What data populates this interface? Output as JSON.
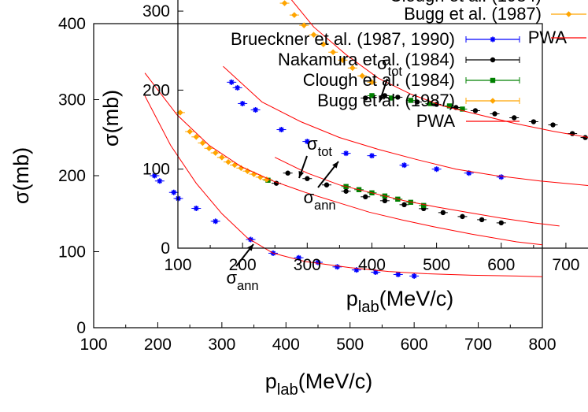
{
  "chart_data": [
    {
      "type": "scatter",
      "panel": "main",
      "xlabel": "p_lab(MeV/c)",
      "ylabel": "σ(mb)",
      "xlim": [
        100,
        800
      ],
      "ylim": [
        0,
        400
      ],
      "xticks": [
        "100",
        "200",
        "300",
        "400",
        "500",
        "600",
        "700",
        "800"
      ],
      "yticks": [
        "0",
        "100",
        "200",
        "300",
        "400"
      ],
      "legend_position": "top-right",
      "series": [
        {
          "name": "Brueckner et al. (1987, 1990)",
          "color": "#0000ff",
          "marker": "star",
          "points": [
            [
              195,
              200
            ],
            [
              203,
              193
            ],
            [
              225,
              178
            ],
            [
              232,
              170
            ],
            [
              260,
              157
            ],
            [
              290,
              140
            ],
            [
              345,
              116
            ],
            [
              380,
              98
            ],
            [
              420,
              92
            ],
            [
              450,
              86
            ],
            [
              480,
              80
            ],
            [
              510,
              76
            ],
            [
              540,
              73
            ],
            [
              575,
              70
            ],
            [
              600,
              68
            ]
          ]
        },
        {
          "name": "Nakamura et al. (1984)",
          "color": "#000000",
          "marker": "circle",
          "points": [
            [
              385,
              190
            ]
          ]
        },
        {
          "name": "Clough et al. (1984)",
          "color": "#008000",
          "marker": "square",
          "points": [
            [
              372,
              194
            ]
          ]
        },
        {
          "name": "Bugg et al. (1987)",
          "color": "#ffa500",
          "marker": "diamond",
          "points": [
            [
              235,
              283
            ],
            [
              250,
              258
            ],
            [
              260,
              251
            ],
            [
              270,
              243
            ],
            [
              280,
              236
            ],
            [
              290,
              230
            ],
            [
              300,
              224
            ],
            [
              310,
              218
            ],
            [
              320,
              214
            ],
            [
              330,
              210
            ],
            [
              340,
              206
            ],
            [
              350,
              202
            ],
            [
              360,
              198
            ],
            [
              370,
              195
            ]
          ]
        },
        {
          "name": "PWA",
          "color": "#ff0000",
          "marker": "line",
          "curves": [
            [
              [
                180,
                335
              ],
              [
                230,
                280
              ],
              [
                280,
                240
              ],
              [
                330,
                212
              ],
              [
                380,
                193
              ],
              [
                430,
                178
              ],
              [
                480,
                165
              ],
              [
                530,
                152
              ],
              [
                580,
                142
              ],
              [
                630,
                133
              ],
              [
                690,
                123
              ],
              [
                760,
                113
              ],
              [
                800,
                109
              ]
            ],
            [
              [
                180,
                305
              ],
              [
                220,
                240
              ],
              [
                260,
                190
              ],
              [
                300,
                150
              ],
              [
                340,
                118
              ],
              [
                380,
                98
              ],
              [
                430,
                87
              ],
              [
                500,
                79
              ],
              [
                560,
                74
              ],
              [
                620,
                71
              ],
              [
                690,
                69
              ],
              [
                760,
                68
              ],
              [
                800,
                67
              ]
            ]
          ]
        }
      ],
      "annotations": [
        "σ_ann"
      ]
    },
    {
      "type": "scatter",
      "panel": "inset",
      "xlabel": "p_lab(MeV/c)",
      "ylabel": "σ(mb)",
      "xlim": [
        100,
        750
      ],
      "ylim": [
        0,
        330
      ],
      "xticks": [
        "100",
        "200",
        "300",
        "400",
        "500",
        "600",
        "700"
      ],
      "yticks": [
        "0",
        "100",
        "200",
        "300"
      ],
      "series": [
        {
          "name": "Brueckner et al. (1987, 1990)",
          "color": "#0000ff",
          "marker": "star",
          "points": [
            [
              183,
              210
            ],
            [
              192,
              203
            ],
            [
              200,
              183
            ],
            [
              220,
              175
            ],
            [
              260,
              150
            ],
            [
              300,
              135
            ],
            [
              360,
              120
            ],
            [
              400,
              117
            ],
            [
              450,
              105
            ],
            [
              500,
              100
            ],
            [
              550,
              95
            ],
            [
              600,
              90
            ]
          ]
        },
        {
          "name": "Nakamura et al. (1984)",
          "color": "#000000",
          "marker": "circle",
          "points": [
            [
              390,
              190
            ],
            [
              420,
              193
            ],
            [
              440,
              191
            ],
            [
              470,
              185
            ],
            [
              500,
              182
            ],
            [
              530,
              178
            ],
            [
              560,
              174
            ],
            [
              590,
              170
            ],
            [
              620,
              165
            ],
            [
              650,
              160
            ],
            [
              680,
              156
            ],
            [
              710,
              145
            ],
            [
              730,
              140
            ],
            [
              270,
              95
            ],
            [
              300,
              88
            ],
            [
              330,
              80
            ],
            [
              360,
              72
            ],
            [
              390,
              65
            ],
            [
              420,
              60
            ],
            [
              450,
              55
            ],
            [
              480,
              50
            ],
            [
              510,
              45
            ],
            [
              540,
              40
            ],
            [
              570,
              36
            ],
            [
              600,
              32
            ]
          ]
        },
        {
          "name": "Clough et al. (1984)",
          "color": "#008000",
          "marker": "square",
          "points": [
            [
              400,
              193
            ],
            [
              430,
              190
            ],
            [
              460,
              187
            ],
            [
              490,
              183
            ],
            [
              520,
              180
            ],
            [
              540,
              176
            ],
            [
              360,
              78
            ],
            [
              380,
              74
            ],
            [
              400,
              70
            ],
            [
              420,
              66
            ],
            [
              440,
              62
            ],
            [
              460,
              58
            ],
            [
              480,
              54
            ]
          ]
        },
        {
          "name": "Bugg et al. (1987)",
          "color": "#ffa500",
          "marker": "diamond",
          "points": [
            [
              250,
              330
            ],
            [
              265,
              310
            ],
            [
              280,
              295
            ],
            [
              295,
              282
            ],
            [
              310,
              270
            ],
            [
              325,
              258
            ],
            [
              340,
              248
            ],
            [
              355,
              238
            ],
            [
              370,
              228
            ],
            [
              385,
              218
            ],
            [
              400,
              210
            ]
          ]
        },
        {
          "name": "PWA",
          "color": "#ff0000",
          "marker": "line",
          "curves": [
            [
              [
                200,
                380
              ],
              [
                260,
                330
              ],
              [
                310,
                280
              ],
              [
                360,
                245
              ],
              [
                410,
                215
              ],
              [
                460,
                195
              ],
              [
                510,
                180
              ],
              [
                560,
                170
              ],
              [
                620,
                158
              ],
              [
                680,
                148
              ],
              [
                750,
                138
              ]
            ],
            [
              [
                170,
                230
              ],
              [
                230,
                185
              ],
              [
                290,
                160
              ],
              [
                350,
                140
              ],
              [
                410,
                125
              ],
              [
                470,
                112
              ],
              [
                530,
                100
              ],
              [
                590,
                92
              ],
              [
                660,
                85
              ],
              [
                750,
                78
              ]
            ],
            [
              [
                250,
                115
              ],
              [
                300,
                95
              ],
              [
                350,
                80
              ],
              [
                400,
                70
              ],
              [
                450,
                60
              ],
              [
                500,
                52
              ],
              [
                550,
                45
              ],
              [
                600,
                38
              ],
              [
                650,
                32
              ],
              [
                690,
                28
              ]
            ]
          ]
        }
      ],
      "annotations": [
        "σ_tot",
        "σ_tot",
        "σ_ann"
      ]
    }
  ]
}
